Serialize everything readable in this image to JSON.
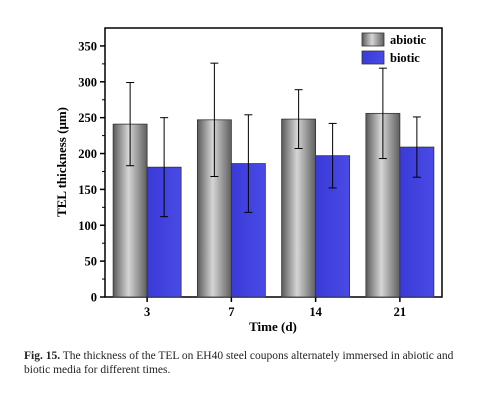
{
  "chart_data": {
    "type": "bar",
    "categories": [
      "3",
      "7",
      "14",
      "21"
    ],
    "series": [
      {
        "name": "abiotic",
        "values": [
          241,
          247,
          248,
          256
        ],
        "errors": [
          58,
          79,
          41,
          63
        ],
        "color": "#8c8c8c"
      },
      {
        "name": "biotic",
        "values": [
          181,
          186,
          197,
          209
        ],
        "errors": [
          69,
          68,
          45,
          42
        ],
        "color": "#3d3ddc"
      }
    ],
    "xlabel": "Time (d)",
    "ylabel": "TEL thickness (μm)",
    "ylim": [
      0,
      375
    ],
    "yticks": [
      0,
      50,
      100,
      150,
      200,
      250,
      300,
      350
    ],
    "grid": false,
    "legend": "top-right"
  },
  "caption": {
    "label": "Fig. 15.",
    "text": "The thickness of the TEL on EH40 steel coupons alternately immersed in abiotic and biotic media for different times."
  }
}
